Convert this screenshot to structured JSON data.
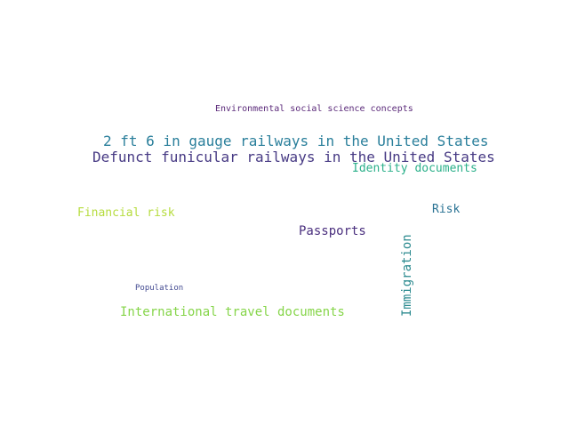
{
  "words": [
    {
      "text": "Environmental social science concepts",
      "color": "#5b2a7a"
    },
    {
      "text": "2 ft 6 in gauge railways in the United States",
      "color": "#2a7f9b"
    },
    {
      "text": "Defunct funicular railways in the United States",
      "color": "#473a84"
    },
    {
      "text": "Identity documents",
      "color": "#2bb08a"
    },
    {
      "text": "Risk",
      "color": "#2a7394"
    },
    {
      "text": "Financial risk",
      "color": "#b6dc3e"
    },
    {
      "text": "Passports",
      "color": "#4a2f7e"
    },
    {
      "text": "Immigration",
      "color": "#2b8a8f"
    },
    {
      "text": "Population",
      "color": "#434a91"
    },
    {
      "text": "International travel documents",
      "color": "#86d54a"
    }
  ]
}
